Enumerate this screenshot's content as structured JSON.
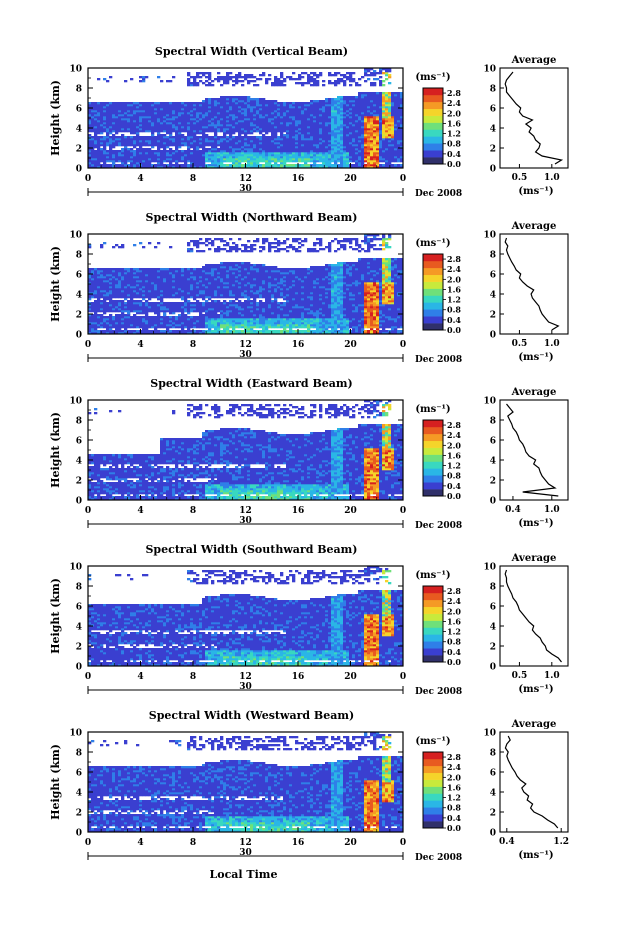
{
  "chart_data": {
    "type": "heatmap",
    "shared": {
      "ylabel": "Height (km)",
      "xlabel": "Local Time",
      "x_ticks": [
        "0",
        "4",
        "8",
        "12",
        "16",
        "20",
        "0"
      ],
      "x_range": [
        0,
        24
      ],
      "y_ticks": [
        "0",
        "2",
        "4",
        "6",
        "8",
        "10"
      ],
      "y_range": [
        0,
        10
      ],
      "date_day": "30",
      "date_label": "Dec 2008",
      "colorbar_unit": "(ms⁻¹)",
      "colorbar_ticks": [
        "0.0",
        "0.4",
        "0.8",
        "1.2",
        "1.6",
        "2.0",
        "2.4",
        "2.8"
      ],
      "colorbar_range": [
        0,
        3.0
      ],
      "colorbar_colors": [
        "#30306a",
        "#3a3fd0",
        "#2f7fe8",
        "#2ab6e6",
        "#39d8c0",
        "#6fe07a",
        "#c8ea3c",
        "#f5d42a",
        "#f59a25",
        "#e85a20",
        "#d62020"
      ],
      "profile_title": "Average",
      "profile_xlabel": "(ms⁻¹)"
    },
    "panels": [
      {
        "title": "Spectral Width (Vertical Beam)",
        "profile_ticks": [
          "0.5",
          "1.0"
        ],
        "profile_xlim": [
          0.2,
          1.25
        ],
        "profile_heights": [
          0.4,
          0.8,
          1.2,
          1.6,
          2.0,
          2.4,
          2.8,
          3.2,
          3.6,
          4.0,
          4.4,
          4.8,
          5.2,
          5.6,
          6.0,
          6.4,
          6.8,
          7.2,
          7.6,
          8.0,
          8.4,
          8.8,
          9.2,
          9.6
        ],
        "profile_values": [
          1.05,
          1.15,
          0.85,
          0.75,
          0.8,
          0.82,
          0.75,
          0.72,
          0.65,
          0.68,
          0.6,
          0.7,
          0.55,
          0.5,
          0.52,
          0.45,
          0.4,
          0.35,
          0.3,
          0.3,
          0.28,
          0.3,
          0.35,
          0.4
        ]
      },
      {
        "title": "Spectral Width (Northward Beam)",
        "profile_ticks": [
          "0.5",
          "1.0"
        ],
        "profile_xlim": [
          0.2,
          1.25
        ],
        "profile_heights": [
          0.4,
          0.8,
          1.2,
          1.6,
          2.0,
          2.4,
          2.8,
          3.2,
          3.6,
          4.0,
          4.4,
          4.8,
          5.2,
          5.6,
          6.0,
          6.4,
          6.8,
          7.2,
          7.6,
          8.0,
          8.4,
          8.8,
          9.2,
          9.6
        ],
        "profile_values": [
          1.0,
          1.1,
          0.95,
          0.9,
          0.85,
          0.82,
          0.8,
          0.75,
          0.7,
          0.68,
          0.72,
          0.62,
          0.55,
          0.5,
          0.52,
          0.45,
          0.42,
          0.38,
          0.35,
          0.32,
          0.3,
          0.32,
          0.28,
          0.3
        ]
      },
      {
        "title": "Spectral Width (Eastward Beam)",
        "profile_ticks": [
          "0.4",
          "1.0"
        ],
        "profile_xlim": [
          0.2,
          1.25
        ],
        "profile_heights": [
          0.4,
          0.8,
          1.2,
          1.6,
          2.0,
          2.4,
          2.8,
          3.2,
          3.6,
          4.0,
          4.4,
          4.8,
          5.2,
          5.6,
          6.0,
          6.4,
          6.8,
          7.2,
          7.6,
          8.0,
          8.4,
          8.8,
          9.2,
          9.6
        ],
        "profile_values": [
          1.1,
          0.55,
          1.05,
          0.95,
          0.9,
          0.85,
          0.82,
          0.8,
          0.72,
          0.75,
          0.65,
          0.6,
          0.58,
          0.55,
          0.5,
          0.48,
          0.45,
          0.4,
          0.38,
          0.35,
          0.32,
          0.4,
          0.35,
          0.3
        ]
      },
      {
        "title": "Spectral Width (Southward Beam)",
        "profile_ticks": [
          "0.5",
          "1.0"
        ],
        "profile_xlim": [
          0.2,
          1.25
        ],
        "profile_heights": [
          0.4,
          0.8,
          1.2,
          1.6,
          2.0,
          2.4,
          2.8,
          3.2,
          3.6,
          4.0,
          4.4,
          4.8,
          5.2,
          5.6,
          6.0,
          6.4,
          6.8,
          7.2,
          7.6,
          8.0,
          8.4,
          8.8,
          9.2,
          9.6
        ],
        "profile_values": [
          1.15,
          1.1,
          1.0,
          0.92,
          0.9,
          0.85,
          0.82,
          0.75,
          0.7,
          0.72,
          0.65,
          0.6,
          0.55,
          0.5,
          0.48,
          0.45,
          0.4,
          0.38,
          0.35,
          0.32,
          0.3,
          0.3,
          0.28,
          0.3
        ]
      },
      {
        "title": "Spectral Width (Westward Beam)",
        "profile_ticks": [
          "0.4",
          "1.2"
        ],
        "profile_xlim": [
          0.3,
          1.3
        ],
        "profile_heights": [
          0.4,
          0.8,
          1.2,
          1.6,
          2.0,
          2.4,
          2.8,
          3.2,
          3.6,
          4.0,
          4.4,
          4.8,
          5.2,
          5.6,
          6.0,
          6.4,
          6.8,
          7.2,
          7.6,
          8.0,
          8.4,
          8.8,
          9.2,
          9.6
        ],
        "profile_values": [
          1.15,
          1.1,
          1.0,
          0.92,
          0.8,
          0.75,
          0.78,
          0.7,
          0.72,
          0.65,
          0.62,
          0.68,
          0.6,
          0.55,
          0.52,
          0.48,
          0.45,
          0.42,
          0.4,
          0.42,
          0.38,
          0.4,
          0.45,
          0.42
        ]
      }
    ]
  }
}
